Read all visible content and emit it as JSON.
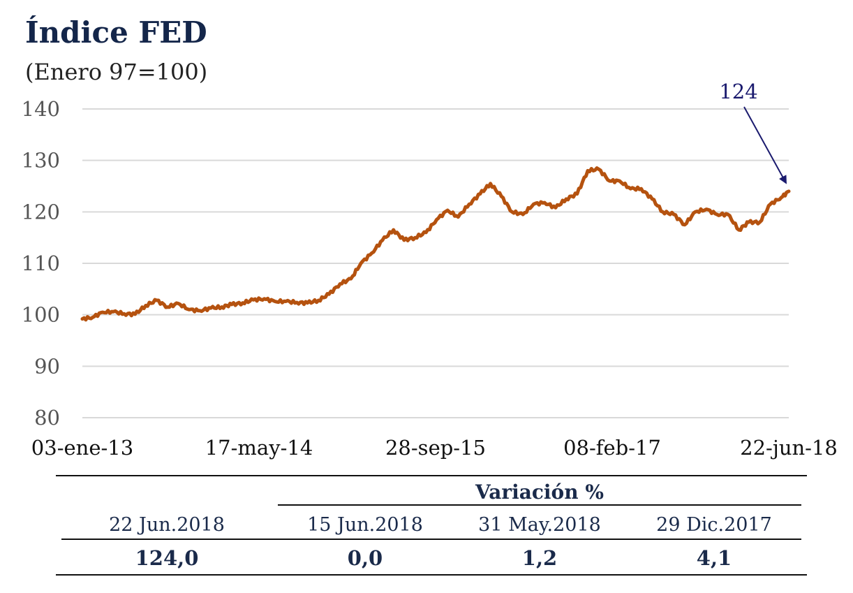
{
  "header": {
    "title": "Índice FED",
    "subtitle": "(Enero 97=100)"
  },
  "colors": {
    "series": "#b5520f",
    "annotation": "#1a1a6e",
    "grid": "#d9d9d9",
    "title": "#14264a"
  },
  "chart_data": {
    "type": "line",
    "title": "Índice FED",
    "subtitle": "(Enero 97=100)",
    "xlabel": "",
    "ylabel": "",
    "ylim": [
      80,
      140
    ],
    "y_ticks": [
      80,
      90,
      100,
      110,
      120,
      130,
      140
    ],
    "x_tick_labels": [
      "03-ene-13",
      "17-may-14",
      "28-sep-15",
      "08-feb-17",
      "22-jun-18"
    ],
    "x_range": [
      "2013-01-03",
      "2018-06-22"
    ],
    "grid": true,
    "legend": "none",
    "annotation": {
      "text": "124",
      "date": "2018-06-22",
      "value": 124
    },
    "series": [
      {
        "name": "",
        "color": "#b5520f",
        "points": [
          [
            "2013-01-03",
            99.2
          ],
          [
            "2013-02-01",
            99.5
          ],
          [
            "2013-03-01",
            100.5
          ],
          [
            "2013-04-01",
            100.6
          ],
          [
            "2013-05-01",
            100.2
          ],
          [
            "2013-06-01",
            100.1
          ],
          [
            "2013-07-01",
            101.8
          ],
          [
            "2013-08-01",
            102.8
          ],
          [
            "2013-09-01",
            101.5
          ],
          [
            "2013-10-01",
            102.2
          ],
          [
            "2013-11-01",
            101.0
          ],
          [
            "2013-12-01",
            100.8
          ],
          [
            "2014-01-01",
            101.3
          ],
          [
            "2014-02-01",
            101.5
          ],
          [
            "2014-03-01",
            102.0
          ],
          [
            "2014-04-01",
            102.3
          ],
          [
            "2014-05-01",
            102.9
          ],
          [
            "2014-06-01",
            103.1
          ],
          [
            "2014-07-01",
            102.6
          ],
          [
            "2014-08-01",
            102.6
          ],
          [
            "2014-09-01",
            102.4
          ],
          [
            "2014-10-01",
            102.3
          ],
          [
            "2014-11-01",
            102.8
          ],
          [
            "2014-12-01",
            104.0
          ],
          [
            "2015-01-01",
            106.0
          ],
          [
            "2015-02-01",
            107.0
          ],
          [
            "2015-03-01",
            110.0
          ],
          [
            "2015-04-01",
            112.0
          ],
          [
            "2015-05-01",
            114.5
          ],
          [
            "2015-06-01",
            116.5
          ],
          [
            "2015-07-01",
            114.5
          ],
          [
            "2015-08-01",
            115.0
          ],
          [
            "2015-09-01",
            116.0
          ],
          [
            "2015-10-01",
            118.5
          ],
          [
            "2015-11-01",
            120.3
          ],
          [
            "2015-12-01",
            119.0
          ],
          [
            "2016-01-01",
            121.5
          ],
          [
            "2016-02-01",
            123.5
          ],
          [
            "2016-03-01",
            125.5
          ],
          [
            "2016-04-01",
            123.0
          ],
          [
            "2016-05-01",
            120.0
          ],
          [
            "2016-06-01",
            119.5
          ],
          [
            "2016-07-01",
            121.5
          ],
          [
            "2016-08-01",
            121.8
          ],
          [
            "2016-09-01",
            120.8
          ],
          [
            "2016-10-01",
            122.5
          ],
          [
            "2016-11-01",
            123.5
          ],
          [
            "2016-12-01",
            128.0
          ],
          [
            "2017-01-01",
            128.3
          ],
          [
            "2017-02-01",
            126.0
          ],
          [
            "2017-03-01",
            126.0
          ],
          [
            "2017-04-01",
            124.5
          ],
          [
            "2017-05-01",
            124.5
          ],
          [
            "2017-06-01",
            122.5
          ],
          [
            "2017-07-01",
            120.0
          ],
          [
            "2017-08-01",
            119.5
          ],
          [
            "2017-09-01",
            117.5
          ],
          [
            "2017-10-01",
            120.0
          ],
          [
            "2017-11-01",
            120.5
          ],
          [
            "2017-12-01",
            119.5
          ],
          [
            "2018-01-01",
            119.5
          ],
          [
            "2018-02-01",
            116.5
          ],
          [
            "2018-03-01",
            118.0
          ],
          [
            "2018-04-01",
            118.0
          ],
          [
            "2018-05-01",
            121.5
          ],
          [
            "2018-06-01",
            122.8
          ],
          [
            "2018-06-22",
            124.0
          ]
        ]
      }
    ]
  },
  "summary_table": {
    "variation_header": "Variación %",
    "dates": [
      "22 Jun.2018",
      "15 Jun.2018",
      "31 May.2018",
      "29 Dic.2017"
    ],
    "values": [
      "124,0",
      "0,0",
      "1,2",
      "4,1"
    ]
  }
}
